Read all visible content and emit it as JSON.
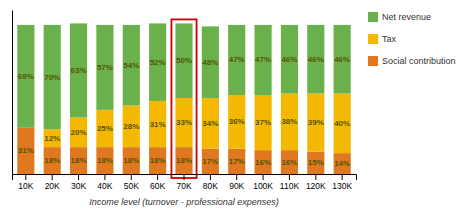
{
  "chart_data": {
    "type": "bar",
    "stacked": true,
    "xlabel": "Income level (turnover - professional expenses)",
    "categories": [
      "10K",
      "20K",
      "30K",
      "40K",
      "50K",
      "60K",
      "70K",
      "80K",
      "90K",
      "100K",
      "110K",
      "120K",
      "130K"
    ],
    "series": [
      {
        "name": "Social contribution",
        "color": "#e07820",
        "values": [
          31,
          18,
          18,
          18,
          18,
          18,
          18,
          17,
          17,
          16,
          16,
          15,
          14
        ],
        "value_labels": [
          "31%",
          "18%",
          "18%",
          "18%",
          "18%",
          "18%",
          "18%",
          "17%",
          "17%",
          "16%",
          "16%",
          "15%",
          "14%"
        ]
      },
      {
        "name": "Tax",
        "color": "#f5b800",
        "values": [
          0,
          12,
          20,
          25,
          28,
          31,
          33,
          34,
          36,
          37,
          38,
          39,
          40
        ],
        "value_labels": [
          null,
          "12%",
          "20%",
          "25%",
          "28%",
          "31%",
          "33%",
          "34%",
          "36%",
          "37%",
          "38%",
          "39%",
          "40%"
        ]
      },
      {
        "name": "Net revenue",
        "color": "#6ab04c",
        "values": [
          69,
          70,
          63,
          57,
          54,
          52,
          50,
          48,
          47,
          47,
          46,
          46,
          46
        ],
        "value_labels": [
          "69%",
          "70%",
          "63%",
          "57%",
          "54%",
          "52%",
          "50%",
          "48%",
          "47%",
          "47%",
          "46%",
          "46%",
          "46%"
        ]
      }
    ],
    "ylim": [
      0,
      110
    ],
    "yticks": [],
    "tick_labels": "x",
    "data_labels": true,
    "legend": "upper right",
    "grid": false,
    "highlight": {
      "category": "70K",
      "color": "#cc0000"
    }
  }
}
